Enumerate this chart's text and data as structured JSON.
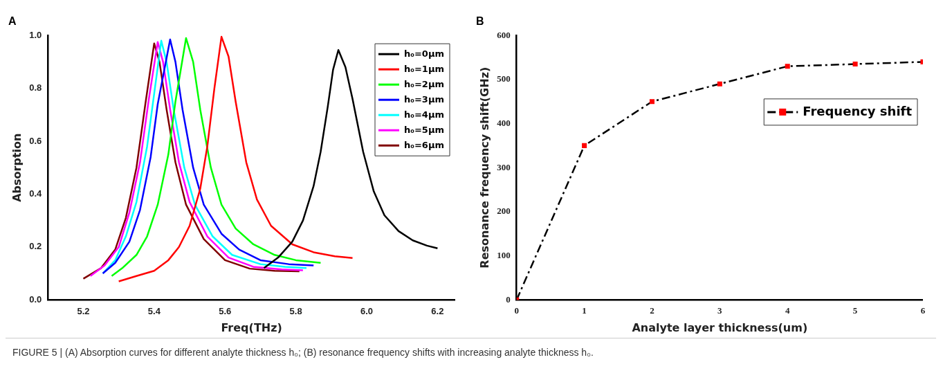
{
  "chart_data": [
    {
      "type": "line",
      "title": "A",
      "xlabel": "Freq(THz)",
      "ylabel": "Absorption",
      "xlim": [
        5.1,
        6.25
      ],
      "ylim": [
        0,
        1
      ],
      "xticks": [
        5.2,
        5.4,
        5.6,
        5.8,
        {
          "value": 6,
          "label": "6.0"
        },
        6.2
      ],
      "yticks": [
        {
          "value": 0,
          "label": "0.0"
        },
        0.2,
        0.4,
        0.6,
        0.8,
        {
          "value": 1,
          "label": "1.0"
        }
      ],
      "grid": false,
      "legend": "top right",
      "marker": "none",
      "line_style": "solid",
      "series": [
        {
          "name": "h₀=0μm",
          "color": "#000000",
          "x": [
            5.71,
            5.75,
            5.79,
            5.82,
            5.85,
            5.87,
            5.89,
            5.905,
            5.92,
            5.94,
            5.96,
            5.99,
            6.02,
            6.05,
            6.09,
            6.13,
            6.17,
            6.2
          ],
          "values": [
            0.12,
            0.16,
            0.22,
            0.3,
            0.43,
            0.56,
            0.73,
            0.87,
            0.945,
            0.88,
            0.76,
            0.56,
            0.41,
            0.32,
            0.26,
            0.225,
            0.205,
            0.195
          ]
        },
        {
          "name": "h₀=1μm",
          "color": "#ff0000",
          "x": [
            5.3,
            5.35,
            5.4,
            5.44,
            5.47,
            5.5,
            5.53,
            5.55,
            5.57,
            5.59,
            5.61,
            5.63,
            5.66,
            5.69,
            5.73,
            5.79,
            5.85,
            5.91,
            5.96
          ],
          "values": [
            0.07,
            0.09,
            0.11,
            0.15,
            0.2,
            0.28,
            0.42,
            0.58,
            0.8,
            0.995,
            0.92,
            0.75,
            0.52,
            0.38,
            0.28,
            0.21,
            0.18,
            0.165,
            0.158
          ]
        },
        {
          "name": "h₀=2μm",
          "color": "#00ff00",
          "x": [
            5.28,
            5.31,
            5.35,
            5.38,
            5.41,
            5.44,
            5.46,
            5.49,
            5.51,
            5.53,
            5.56,
            5.59,
            5.63,
            5.68,
            5.74,
            5.8,
            5.87
          ],
          "values": [
            0.09,
            0.12,
            0.17,
            0.24,
            0.36,
            0.55,
            0.75,
            0.99,
            0.9,
            0.72,
            0.5,
            0.36,
            0.27,
            0.21,
            0.17,
            0.15,
            0.14
          ]
        },
        {
          "name": "h₀=3μm",
          "color": "#0000ff",
          "x": [
            5.255,
            5.29,
            5.33,
            5.36,
            5.39,
            5.41,
            5.445,
            5.46,
            5.48,
            5.51,
            5.54,
            5.59,
            5.64,
            5.7,
            5.78,
            5.85
          ],
          "values": [
            0.1,
            0.14,
            0.22,
            0.34,
            0.54,
            0.74,
            0.985,
            0.9,
            0.72,
            0.5,
            0.36,
            0.25,
            0.19,
            0.15,
            0.135,
            0.13
          ]
        },
        {
          "name": "h₀=4μm",
          "color": "#00ffff",
          "x": [
            5.255,
            5.29,
            5.32,
            5.35,
            5.38,
            5.4,
            5.42,
            5.435,
            5.455,
            5.485,
            5.515,
            5.565,
            5.62,
            5.7,
            5.77,
            5.83
          ],
          "values": [
            0.1,
            0.15,
            0.24,
            0.37,
            0.58,
            0.78,
            0.98,
            0.9,
            0.72,
            0.5,
            0.36,
            0.24,
            0.17,
            0.135,
            0.125,
            0.12
          ]
        },
        {
          "name": "h₀=5μm",
          "color": "#ff00ff",
          "x": [
            5.22,
            5.26,
            5.3,
            5.33,
            5.36,
            5.385,
            5.41,
            5.425,
            5.445,
            5.47,
            5.5,
            5.55,
            5.61,
            5.68,
            5.76,
            5.82
          ],
          "values": [
            0.09,
            0.13,
            0.2,
            0.33,
            0.52,
            0.76,
            0.975,
            0.9,
            0.72,
            0.52,
            0.37,
            0.24,
            0.16,
            0.125,
            0.115,
            0.112
          ]
        },
        {
          "name": "h₀=6μm",
          "color": "#800000",
          "x": [
            5.2,
            5.25,
            5.29,
            5.32,
            5.35,
            5.375,
            5.4,
            5.415,
            5.435,
            5.46,
            5.49,
            5.54,
            5.6,
            5.67,
            5.74,
            5.81
          ],
          "values": [
            0.08,
            0.12,
            0.19,
            0.31,
            0.5,
            0.74,
            0.97,
            0.9,
            0.72,
            0.52,
            0.36,
            0.23,
            0.15,
            0.118,
            0.11,
            0.108
          ]
        }
      ],
      "annotations": [
        "FIGURE 5 | (A) Absorption curves for different analyte thickness h₀; (B) resonance frequency shifts with increasing analyte thickness h₀."
      ]
    },
    {
      "type": "line",
      "title": "B",
      "xlabel": "Analyte layer thickness(um)",
      "ylabel": "Resonance frequency shift(GHz)",
      "xlim": [
        0,
        6
      ],
      "ylim": [
        0,
        600
      ],
      "xticks": [
        0,
        1,
        2,
        3,
        4,
        5,
        6
      ],
      "yticks": [
        0,
        100,
        200,
        300,
        400,
        500,
        600
      ],
      "grid": false,
      "legend": "right",
      "marker": "square",
      "line_style": "dashed",
      "series": [
        {
          "name": "Frequency shift",
          "color": "#000000",
          "x": [
            0,
            1,
            2,
            3,
            4,
            5,
            6
          ],
          "values": [
            0,
            350,
            450,
            490,
            530,
            535,
            540
          ]
        }
      ]
    }
  ]
}
